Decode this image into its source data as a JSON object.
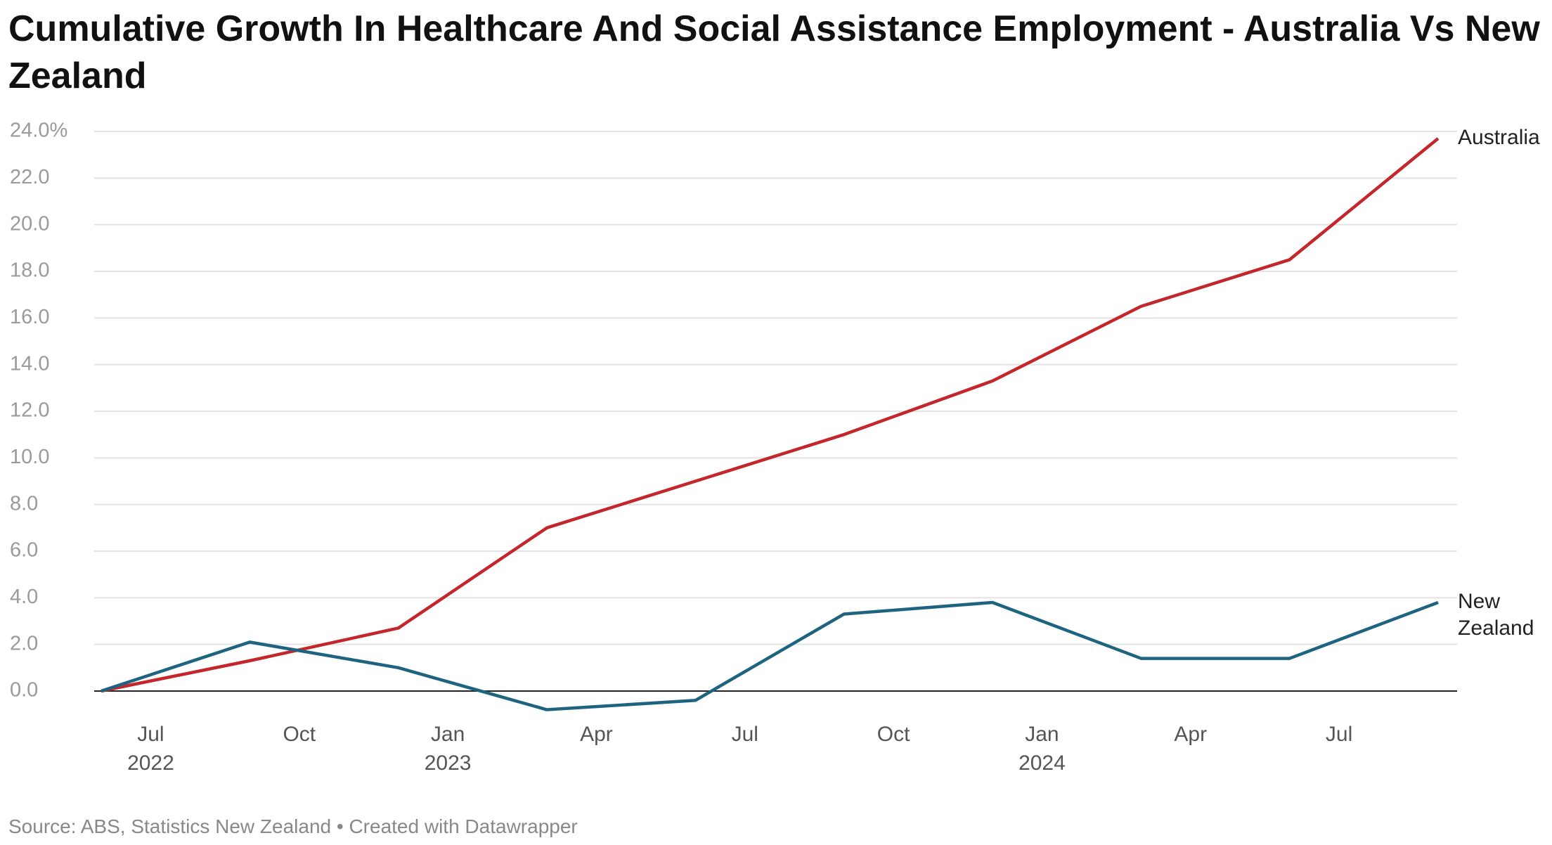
{
  "chart_data": {
    "type": "line",
    "title": "Cumulative Growth In Healthcare And Social Assistance Employment - Australia Vs New Zealand",
    "source": "Source: ABS, Statistics New Zealand • Created with Datawrapper",
    "x": [
      "2022-06",
      "2022-09",
      "2022-12",
      "2023-03",
      "2023-06",
      "2023-09",
      "2023-12",
      "2024-03",
      "2024-06",
      "2024-09"
    ],
    "xlim": [
      "2022-06",
      "2024-09"
    ],
    "xticks": [
      {
        "value": "2022-07",
        "label": "Jul",
        "year": "2022"
      },
      {
        "value": "2022-10",
        "label": "Oct"
      },
      {
        "value": "2023-01",
        "label": "Jan",
        "year": "2023"
      },
      {
        "value": "2023-04",
        "label": "Apr"
      },
      {
        "value": "2023-07",
        "label": "Jul"
      },
      {
        "value": "2023-10",
        "label": "Oct"
      },
      {
        "value": "2024-01",
        "label": "Jan",
        "year": "2024"
      },
      {
        "value": "2024-04",
        "label": "Apr"
      },
      {
        "value": "2024-07",
        "label": "Jul"
      }
    ],
    "ylim": [
      -1,
      24
    ],
    "yticks": [
      {
        "value": 0,
        "label": "0.0"
      },
      {
        "value": 2,
        "label": "2.0"
      },
      {
        "value": 4,
        "label": "4.0"
      },
      {
        "value": 6,
        "label": "6.0"
      },
      {
        "value": 8,
        "label": "8.0"
      },
      {
        "value": 10,
        "label": "10.0"
      },
      {
        "value": 12,
        "label": "12.0"
      },
      {
        "value": 14,
        "label": "14.0"
      },
      {
        "value": 16,
        "label": "16.0"
      },
      {
        "value": 18,
        "label": "18.0"
      },
      {
        "value": 20,
        "label": "20.0"
      },
      {
        "value": 22,
        "label": "22.0"
      },
      {
        "value": 24,
        "label": "24.0%"
      }
    ],
    "grid": true,
    "series": [
      {
        "name": "Australia",
        "color": "#c3272b",
        "values": [
          0,
          1.3,
          2.7,
          7.0,
          9.0,
          11.0,
          13.3,
          16.5,
          18.5,
          23.7
        ]
      },
      {
        "name": "New Zealand",
        "color": "#1e6481",
        "values": [
          0,
          2.1,
          1.0,
          -0.8,
          -0.4,
          3.3,
          3.8,
          1.4,
          1.4,
          3.8
        ]
      }
    ]
  }
}
